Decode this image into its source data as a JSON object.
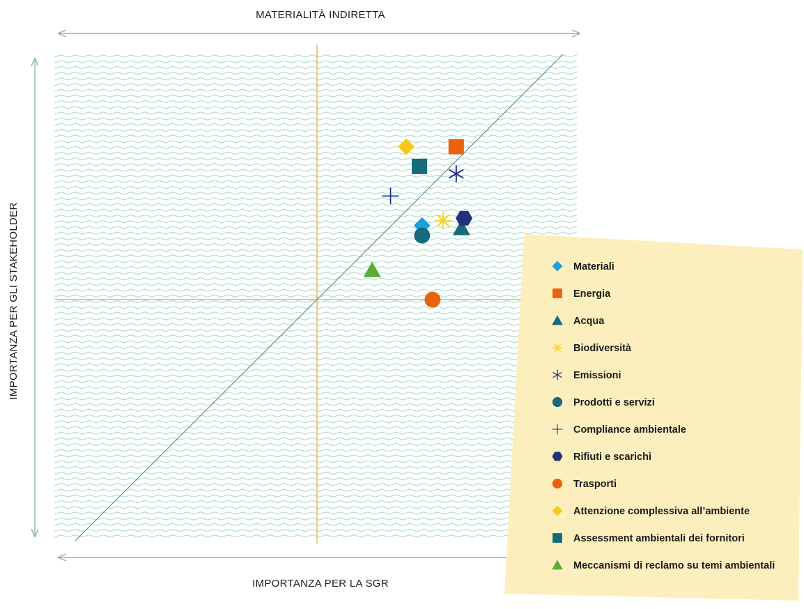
{
  "chart_data": {
    "type": "scatter",
    "title": "",
    "top_label": "MATERIALITÀ INDIRETTA",
    "xlabel": "IMPORTANZA PER LA SGR",
    "ylabel": "IMPORTANZA PER GLI STAKEHOLDER",
    "xlim": [
      0,
      10
    ],
    "ylim": [
      0,
      10
    ],
    "grid": false,
    "legend_position": "bottom-right",
    "reference_lines": {
      "x_mid": 5,
      "y_mid": 5,
      "diagonal": true
    },
    "colors": {
      "wave": "#9ed8c8",
      "quadrant_line": "#f2a23a",
      "diagonal": "#6b8f8c",
      "axis_arrow": "#8fb0b0",
      "legend_bg": "#fdeeb8"
    },
    "series": [
      {
        "name": "Materiali",
        "marker": "diamond",
        "color": "#1ba0dc",
        "x": 7.0,
        "y": 6.5
      },
      {
        "name": "Energia",
        "marker": "square",
        "color": "#e8620f",
        "x": 7.65,
        "y": 8.1
      },
      {
        "name": "Acqua",
        "marker": "triangle",
        "color": "#136b7c",
        "x": 7.75,
        "y": 6.45
      },
      {
        "name": "Biodiversità",
        "marker": "asterisk",
        "color": "#f7d21c",
        "x": 7.4,
        "y": 6.6
      },
      {
        "name": "Emissioni",
        "marker": "x-star",
        "color": "#1f2a8a",
        "x": 7.65,
        "y": 7.55
      },
      {
        "name": "Prodotti e servizi",
        "marker": "circle",
        "color": "#136b7c",
        "x": 7.0,
        "y": 6.3
      },
      {
        "name": "Compliance ambientale",
        "marker": "plus",
        "color": "#1f2a8a",
        "x": 6.4,
        "y": 7.1
      },
      {
        "name": "Rifiuti e scarichi",
        "marker": "hexagon",
        "color": "#24307e",
        "x": 7.8,
        "y": 6.65
      },
      {
        "name": "Trasporti",
        "marker": "circle",
        "color": "#e8620f",
        "x": 7.2,
        "y": 5.0
      },
      {
        "name": "Attenzione complessiva all’ambiente",
        "marker": "diamond",
        "color": "#f7c91c",
        "x": 6.7,
        "y": 8.1
      },
      {
        "name": "Assessment ambientali dei fornitori",
        "marker": "square",
        "color": "#136b7c",
        "x": 6.95,
        "y": 7.7
      },
      {
        "name": "Meccanismi di reclamo su temi ambientali",
        "marker": "triangle",
        "color": "#5aac34",
        "x": 6.05,
        "y": 5.6
      }
    ]
  }
}
